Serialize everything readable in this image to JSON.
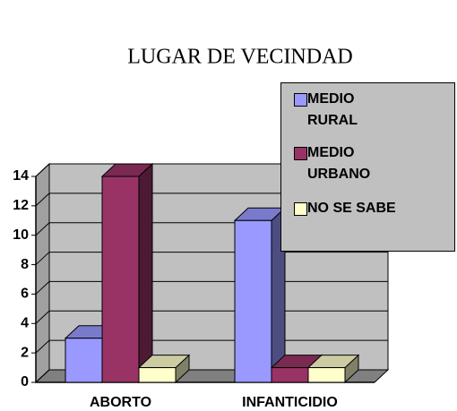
{
  "chart_data": {
    "type": "bar3d",
    "title": "LUGAR DE VECINDAD",
    "categories": [
      "ABORTO",
      "INFANTICIDIO"
    ],
    "series": [
      {
        "name": "MEDIO RURAL",
        "color": "#9999ff",
        "values": [
          3,
          11
        ]
      },
      {
        "name": "MEDIO URBANO",
        "color": "#993366",
        "values": [
          14,
          1
        ]
      },
      {
        "name": "NO SE SABE",
        "color": "#ffffcc",
        "values": [
          1,
          1
        ]
      }
    ],
    "ylim": [
      0,
      14
    ],
    "yticks": [
      0,
      2,
      4,
      6,
      8,
      10,
      12,
      14
    ],
    "grid": true,
    "legend": "right"
  }
}
